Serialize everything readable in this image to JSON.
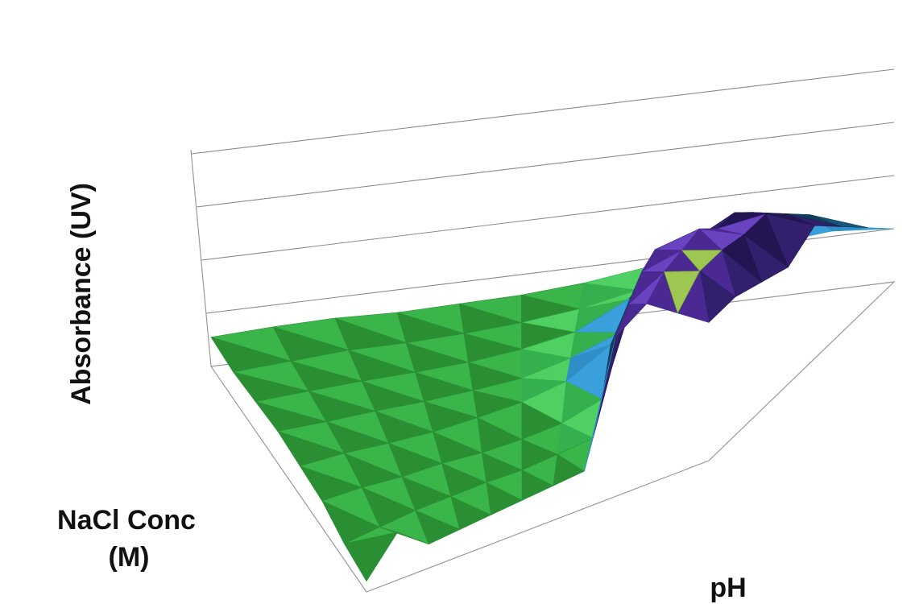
{
  "chart_data": {
    "type": "surface",
    "title": "",
    "xlabel": "pH",
    "ylabel": "NaCl Conc (M)",
    "ylabel_lines": [
      "NaCl Conc",
      "(M)"
    ],
    "zlabel": "Absorbance (UV)",
    "zrange": [
      0,
      4
    ],
    "z_gridlines": [
      1,
      2,
      3,
      4
    ],
    "grid": true,
    "legend": "none",
    "band_colors": [
      "#2e9e37",
      "#3fc85a",
      "#3aa0dc",
      "#124668",
      "#2a1a5e",
      "#5a35a8",
      "#a4d646"
    ],
    "grid_size": {
      "ph_steps": 12,
      "nacl_steps": 8
    },
    "z_values": [
      [
        0.55,
        0.6,
        0.62,
        0.58,
        0.6,
        0.62,
        0.7,
        0.85,
        0.9,
        1.0,
        1.1,
        1.0
      ],
      [
        0.5,
        0.55,
        0.6,
        0.58,
        0.6,
        0.65,
        0.75,
        0.95,
        1.4,
        2.1,
        1.9,
        1.5
      ],
      [
        0.55,
        0.58,
        0.6,
        0.6,
        0.62,
        0.7,
        0.85,
        1.3,
        2.1,
        2.6,
        2.4,
        2.0
      ],
      [
        0.6,
        0.6,
        0.62,
        0.62,
        0.65,
        0.7,
        0.9,
        1.2,
        2.0,
        2.8,
        2.9,
        2.5
      ],
      [
        0.55,
        0.6,
        0.6,
        0.62,
        0.7,
        0.8,
        1.0,
        1.5,
        3.1,
        3.3,
        3.0,
        2.2
      ],
      [
        0.5,
        0.55,
        0.55,
        0.6,
        0.6,
        0.65,
        0.75,
        1.0,
        3.2,
        3.4,
        3.2,
        2.4
      ],
      [
        0.3,
        0.4,
        0.5,
        0.55,
        0.6,
        0.62,
        0.7,
        0.8,
        3.1,
        3.5,
        3.3,
        2.6
      ],
      [
        0.2,
        0.9,
        0.45,
        0.5,
        0.55,
        0.6,
        0.65,
        0.7,
        3.0,
        3.4,
        3.0,
        2.6
      ]
    ]
  }
}
